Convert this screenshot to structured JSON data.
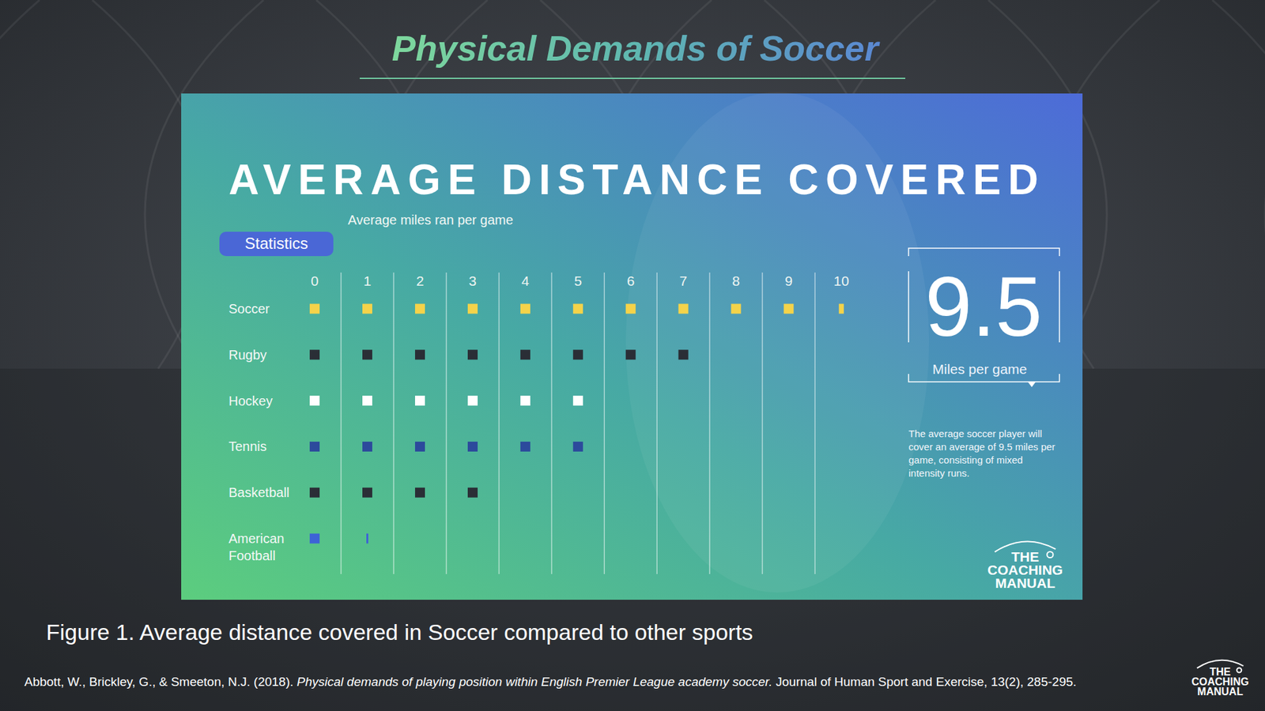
{
  "slide": {
    "title": "Physical Demands of Soccer",
    "caption": "Figure 1. Average distance covered in Soccer compared to other sports",
    "citation": {
      "authors": "Abbott, W., Brickley, G., & Smeeton, N.J. (2018).",
      "article": "Physical demands of playing position within English Premier League academy soccer.",
      "journal": "Journal of Human Sport and Exercise, 13(2), 285-295."
    },
    "logo": "THE COACHING MANUAL"
  },
  "chart_data": {
    "type": "bar",
    "orientation": "horizontal",
    "title": "AVERAGE DISTANCE COVERED",
    "subtitle": "Average miles ran per game",
    "badge": "Statistics",
    "categories": [
      "Soccer",
      "Rugby",
      "Hockey",
      "Tennis",
      "Basketball",
      "American Football"
    ],
    "values": [
      9.5,
      7,
      5,
      5,
      3,
      0.2
    ],
    "colors": [
      "#f4d34a",
      "#2a2e36",
      "#ffffff",
      "#2c4a9c",
      "#2a2e36",
      "#3d63d6"
    ],
    "xlim": [
      0,
      10
    ],
    "xticks": [
      0,
      1,
      2,
      3,
      4,
      5,
      6,
      7,
      8,
      9,
      10
    ],
    "grid": true,
    "annotations": {
      "callout_label": "Miles per game",
      "note": "The average soccer player will cover an average of 9.5 miles per game, consisting of mixed intensity runs."
    }
  }
}
